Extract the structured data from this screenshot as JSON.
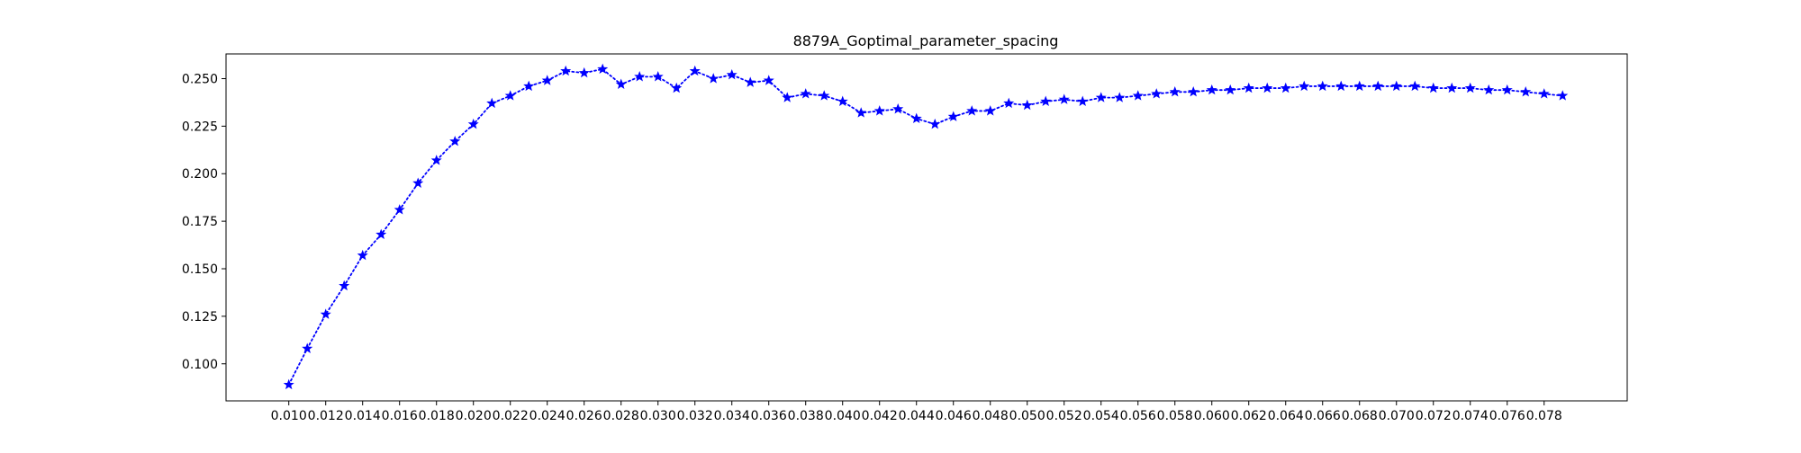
{
  "chart_data": {
    "type": "line",
    "title": "8879A_Goptimal_parameter_spacing",
    "xlabel": "",
    "ylabel": "",
    "x": [
      0.01,
      0.011,
      0.012,
      0.013,
      0.014,
      0.015,
      0.016,
      0.017,
      0.018,
      0.019,
      0.02,
      0.021,
      0.022,
      0.023,
      0.024,
      0.025,
      0.026,
      0.027,
      0.028,
      0.029,
      0.03,
      0.031,
      0.032,
      0.033,
      0.034,
      0.035,
      0.036,
      0.037,
      0.038,
      0.039,
      0.04,
      0.041,
      0.042,
      0.043,
      0.044,
      0.045,
      0.046,
      0.047,
      0.048,
      0.049,
      0.05,
      0.051,
      0.052,
      0.053,
      0.054,
      0.055,
      0.056,
      0.057,
      0.058,
      0.059,
      0.06,
      0.061,
      0.062,
      0.063,
      0.064,
      0.065,
      0.066,
      0.067,
      0.068,
      0.069,
      0.07,
      0.071,
      0.072,
      0.073,
      0.074,
      0.075,
      0.076,
      0.077,
      0.078,
      0.079
    ],
    "series": [
      {
        "values": [
          0.089,
          0.108,
          0.126,
          0.141,
          0.157,
          0.168,
          0.181,
          0.195,
          0.207,
          0.217,
          0.226,
          0.237,
          0.241,
          0.246,
          0.249,
          0.254,
          0.253,
          0.255,
          0.247,
          0.251,
          0.251,
          0.245,
          0.254,
          0.25,
          0.252,
          0.248,
          0.249,
          0.24,
          0.242,
          0.241,
          0.238,
          0.232,
          0.233,
          0.234,
          0.229,
          0.226,
          0.23,
          0.233,
          0.233,
          0.237,
          0.236,
          0.238,
          0.239,
          0.238,
          0.24,
          0.24,
          0.241,
          0.242,
          0.243,
          0.243,
          0.244,
          0.244,
          0.245,
          0.245,
          0.245,
          0.246,
          0.246,
          0.246,
          0.246,
          0.246,
          0.246,
          0.246,
          0.245,
          0.245,
          0.245,
          0.244,
          0.244,
          0.243,
          0.242,
          0.241
        ],
        "color": "#0000ff",
        "line_style": "dotted",
        "marker": "star"
      }
    ],
    "xlim": [
      0.0066,
      0.0825
    ],
    "ylim": [
      0.0805,
      0.263
    ],
    "xticks": [
      0.01,
      0.012,
      0.014,
      0.016,
      0.018,
      0.02,
      0.022,
      0.024,
      0.026,
      0.028,
      0.03,
      0.032,
      0.034,
      0.036,
      0.038,
      0.04,
      0.042,
      0.044,
      0.046,
      0.048,
      0.05,
      0.052,
      0.054,
      0.056,
      0.058,
      0.06,
      0.062,
      0.064,
      0.066,
      0.068,
      0.07,
      0.072,
      0.074,
      0.076,
      0.078
    ],
    "xtick_labels": [
      "0.010",
      "0.012",
      "0.014",
      "0.016",
      "0.018",
      "0.020",
      "0.022",
      "0.024",
      "0.026",
      "0.028",
      "0.030",
      "0.032",
      "0.034",
      "0.036",
      "0.038",
      "0.040",
      "0.042",
      "0.044",
      "0.046",
      "0.048",
      "0.050",
      "0.052",
      "0.054",
      "0.056",
      "0.058",
      "0.060",
      "0.062",
      "0.064",
      "0.066",
      "0.068",
      "0.070",
      "0.072",
      "0.074",
      "0.076",
      "0.078"
    ],
    "yticks": [
      0.1,
      0.125,
      0.15,
      0.175,
      0.2,
      0.225,
      0.25
    ],
    "ytick_labels": [
      "0.100",
      "0.125",
      "0.150",
      "0.175",
      "0.200",
      "0.225",
      "0.250"
    ],
    "grid": false,
    "legend": "none"
  }
}
